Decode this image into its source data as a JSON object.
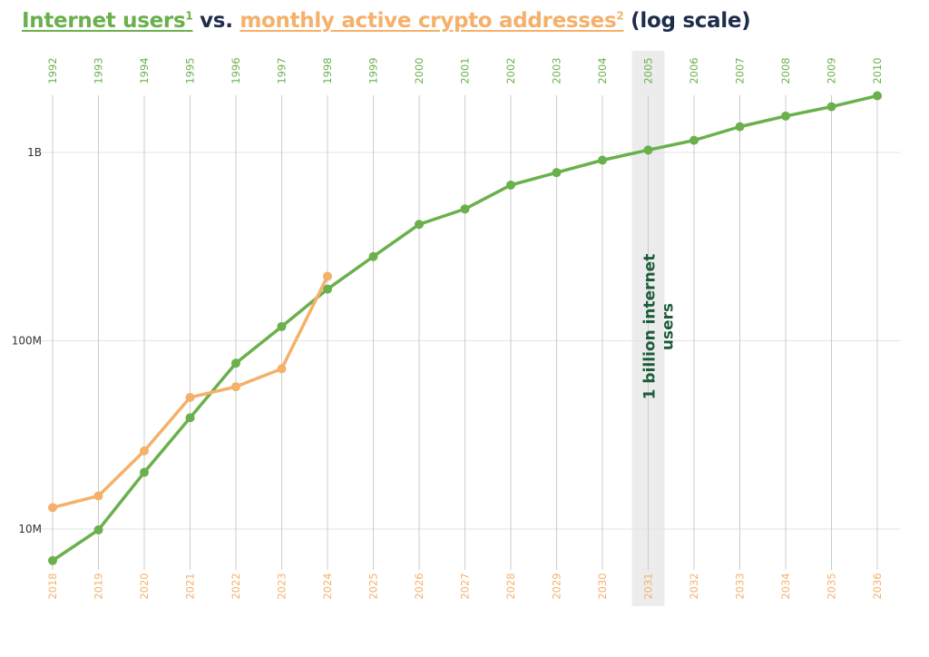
{
  "title": {
    "part1": "Internet users",
    "sup1": "1",
    "mid": " vs. ",
    "part2": "monthly active crypto addresses",
    "sup2": "2",
    "tail": " (log scale)"
  },
  "colors": {
    "internet": "#6ab04c",
    "crypto": "#f5b06a",
    "highlight": "#ececec",
    "annotation": "#1d5c3a",
    "grid": "#cccccc"
  },
  "chart_data": {
    "type": "line",
    "yscale": "log",
    "ylim": [
      6500000,
      2100000000
    ],
    "yticks": [
      {
        "value": 10000000,
        "label": "10M"
      },
      {
        "value": 100000000,
        "label": "100M"
      },
      {
        "value": 1000000000,
        "label": "1B"
      }
    ],
    "x_top": [
      "1992",
      "1993",
      "1994",
      "1995",
      "1996",
      "1997",
      "1998",
      "1999",
      "2000",
      "2001",
      "2002",
      "2003",
      "2004",
      "2005",
      "2006",
      "2007",
      "2008",
      "2009",
      "2010"
    ],
    "x_bottom": [
      "2018",
      "2019",
      "2020",
      "2021",
      "2022",
      "2023",
      "2024",
      "2025",
      "2026",
      "2027",
      "2028",
      "2029",
      "2030",
      "2031",
      "2032",
      "2033",
      "2034",
      "2035",
      "2036"
    ],
    "series": [
      {
        "key": "internet",
        "values": [
          6800000,
          9900000,
          20000000,
          39000000,
          76000000,
          119000000,
          188000000,
          280000000,
          415000000,
          501000000,
          671000000,
          782000000,
          910000000,
          1030000000,
          1160000000,
          1370000000,
          1560000000,
          1750000000,
          2000000000
        ]
      },
      {
        "key": "crypto",
        "values": [
          13000000,
          15000000,
          26000000,
          50000000,
          57000000,
          71000000,
          220000000
        ]
      }
    ],
    "highlight_index": 13,
    "annotation": {
      "line1": "1 billion internet",
      "line2": "users"
    },
    "grid": true
  }
}
